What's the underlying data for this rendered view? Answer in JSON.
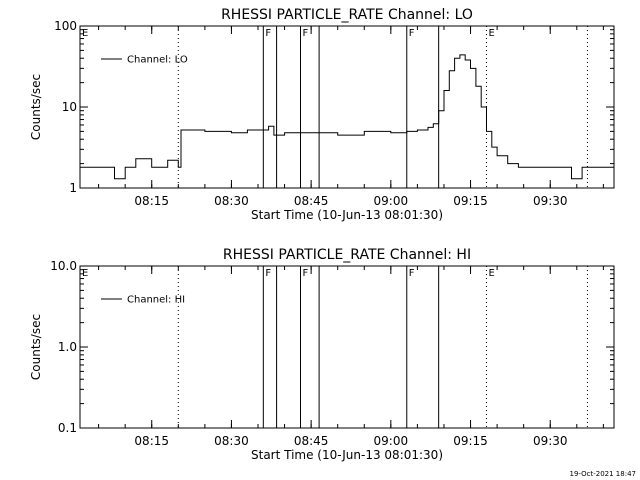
{
  "footer": {
    "timestamp": "19-Oct-2021 18:47"
  },
  "chart_data": [
    {
      "type": "line",
      "title": "RHESSI PARTICLE_RATE Channel: LO",
      "xlabel": "Start Time (10-Jun-13 08:01:30)",
      "ylabel": "Counts/sec",
      "yscale": "log",
      "ylim": [
        1,
        100
      ],
      "yticks": [
        1,
        10,
        100
      ],
      "ytick_labels": [
        "1",
        "10",
        "100"
      ],
      "xlim": [
        "08:01:30",
        "09:42:00"
      ],
      "xticks": [
        "08:15",
        "08:30",
        "08:45",
        "09:00",
        "09:15",
        "09:30"
      ],
      "legend": {
        "entries": [
          "Channel: LO"
        ],
        "placement": "top-left"
      },
      "markers": [
        {
          "label": "E",
          "time": "08:01:30",
          "style": "none"
        },
        {
          "label": "",
          "time": "08:20:00",
          "style": "dotted"
        },
        {
          "label": "F",
          "time": "08:36:00",
          "style": "solid"
        },
        {
          "label": "",
          "time": "08:38:30",
          "style": "solid"
        },
        {
          "label": "F",
          "time": "08:43:00",
          "style": "solid"
        },
        {
          "label": "",
          "time": "08:46:30",
          "style": "solid"
        },
        {
          "label": "F",
          "time": "09:03:00",
          "style": "solid"
        },
        {
          "label": "",
          "time": "09:09:00",
          "style": "solid"
        },
        {
          "label": "E",
          "time": "09:18:00",
          "style": "dotted"
        },
        {
          "label": "",
          "time": "09:37:00",
          "style": "dotted"
        }
      ],
      "series": [
        {
          "name": "Channel: LO",
          "x": [
            "08:01:30",
            "08:05:00",
            "08:08:00",
            "08:10:00",
            "08:12:00",
            "08:15:00",
            "08:18:00",
            "08:20:00",
            "08:20:30",
            "08:25:00",
            "08:30:00",
            "08:33:00",
            "08:36:00",
            "08:37:00",
            "08:38:00",
            "08:40:00",
            "08:45:00",
            "08:50:00",
            "08:55:00",
            "09:00:00",
            "09:03:00",
            "09:05:00",
            "09:07:00",
            "09:08:00",
            "09:09:00",
            "09:10:00",
            "09:11:00",
            "09:12:00",
            "09:13:00",
            "09:14:00",
            "09:15:00",
            "09:16:00",
            "09:17:00",
            "09:18:00",
            "09:19:00",
            "09:20:00",
            "09:22:00",
            "09:24:00",
            "09:26:00",
            "09:28:00",
            "09:30:00",
            "09:32:00",
            "09:34:00",
            "09:36:00",
            "09:38:00",
            "09:40:00",
            "09:42:00"
          ],
          "y": [
            1.8,
            1.8,
            1.3,
            1.8,
            2.3,
            1.8,
            2.2,
            1.8,
            5.2,
            5.0,
            4.8,
            5.2,
            5.2,
            5.8,
            4.5,
            4.8,
            4.8,
            4.5,
            5.0,
            4.8,
            5.0,
            5.2,
            5.6,
            6.2,
            9.0,
            16.0,
            28.0,
            40.0,
            44.0,
            38.0,
            30.0,
            18.0,
            10.0,
            5.0,
            3.2,
            2.5,
            2.0,
            1.8,
            1.8,
            1.8,
            1.8,
            1.8,
            1.3,
            1.8,
            1.8,
            1.8,
            1.8
          ]
        }
      ]
    },
    {
      "type": "line",
      "title": "RHESSI PARTICLE_RATE Channel: HI",
      "xlabel": "Start Time (10-Jun-13 08:01:30)",
      "ylabel": "Counts/sec",
      "yscale": "log",
      "ylim": [
        0.1,
        10
      ],
      "yticks": [
        0.1,
        1,
        10
      ],
      "ytick_labels": [
        "0.1",
        "1.0",
        "10.0"
      ],
      "xlim": [
        "08:01:30",
        "09:42:00"
      ],
      "xticks": [
        "08:15",
        "08:30",
        "08:45",
        "09:00",
        "09:15",
        "09:30"
      ],
      "legend": {
        "entries": [
          "Channel: HI"
        ],
        "placement": "top-left"
      },
      "markers": [
        {
          "label": "E",
          "time": "08:01:30",
          "style": "none"
        },
        {
          "label": "",
          "time": "08:20:00",
          "style": "dotted"
        },
        {
          "label": "F",
          "time": "08:36:00",
          "style": "solid"
        },
        {
          "label": "",
          "time": "08:38:30",
          "style": "solid"
        },
        {
          "label": "F",
          "time": "08:43:00",
          "style": "solid"
        },
        {
          "label": "",
          "time": "08:46:30",
          "style": "solid"
        },
        {
          "label": "F",
          "time": "09:03:00",
          "style": "solid"
        },
        {
          "label": "",
          "time": "09:09:00",
          "style": "solid"
        },
        {
          "label": "E",
          "time": "09:18:00",
          "style": "dotted"
        },
        {
          "label": "",
          "time": "09:37:00",
          "style": "dotted"
        }
      ],
      "series": [
        {
          "name": "Channel: HI",
          "x": [],
          "y": []
        }
      ]
    }
  ]
}
